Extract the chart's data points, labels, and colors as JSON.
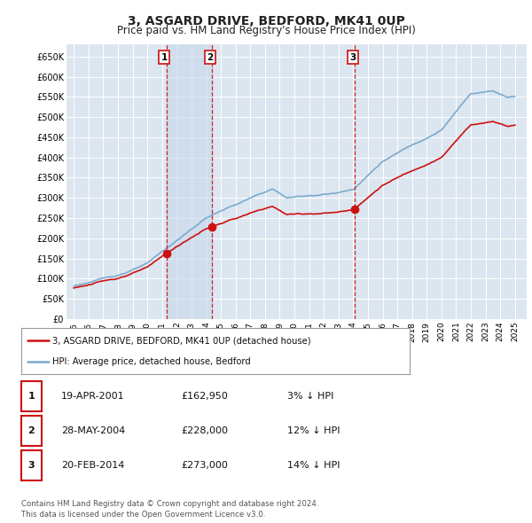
{
  "title": "3, ASGARD DRIVE, BEDFORD, MK41 0UP",
  "subtitle": "Price paid vs. HM Land Registry's House Price Index (HPI)",
  "title_fontsize": 10,
  "subtitle_fontsize": 8.5,
  "background_color": "#ffffff",
  "plot_bg_color": "#dce6f0",
  "grid_color": "#ffffff",
  "yticks": [
    0,
    50000,
    100000,
    150000,
    200000,
    250000,
    300000,
    350000,
    400000,
    450000,
    500000,
    550000,
    600000,
    650000
  ],
  "ytick_labels": [
    "£0",
    "£50K",
    "£100K",
    "£150K",
    "£200K",
    "£250K",
    "£300K",
    "£350K",
    "£400K",
    "£450K",
    "£500K",
    "£550K",
    "£600K",
    "£650K"
  ],
  "ylim": [
    0,
    680000
  ],
  "hpi_color": "#7aaacc",
  "price_color": "#cc1111",
  "vline_color": "#cc1111",
  "vline_style": "--",
  "shade_color": "#c8d8ec",
  "purchases": [
    {
      "label": "1",
      "date": 2001.3,
      "price": 162950
    },
    {
      "label": "2",
      "date": 2004.41,
      "price": 228000
    },
    {
      "label": "3",
      "date": 2014.12,
      "price": 273000
    }
  ],
  "legend_entries": [
    {
      "label": "3, ASGARD DRIVE, BEDFORD, MK41 0UP (detached house)",
      "color": "#cc1111",
      "lw": 1.8
    },
    {
      "label": "HPI: Average price, detached house, Bedford",
      "color": "#7aaacc",
      "lw": 1.8
    }
  ],
  "table_rows": [
    [
      "1",
      "19-APR-2001",
      "£162,950",
      "3% ↓ HPI"
    ],
    [
      "2",
      "28-MAY-2004",
      "£228,000",
      "12% ↓ HPI"
    ],
    [
      "3",
      "20-FEB-2014",
      "£273,000",
      "14% ↓ HPI"
    ]
  ],
  "footer": "Contains HM Land Registry data © Crown copyright and database right 2024.\nThis data is licensed under the Open Government Licence v3.0.",
  "xticks": [
    1995,
    1996,
    1997,
    1998,
    1999,
    2000,
    2001,
    2002,
    2003,
    2004,
    2005,
    2006,
    2007,
    2008,
    2009,
    2010,
    2011,
    2012,
    2013,
    2014,
    2015,
    2016,
    2017,
    2018,
    2019,
    2020,
    2021,
    2022,
    2023,
    2024,
    2025
  ],
  "xlim": [
    1994.5,
    2025.8
  ]
}
